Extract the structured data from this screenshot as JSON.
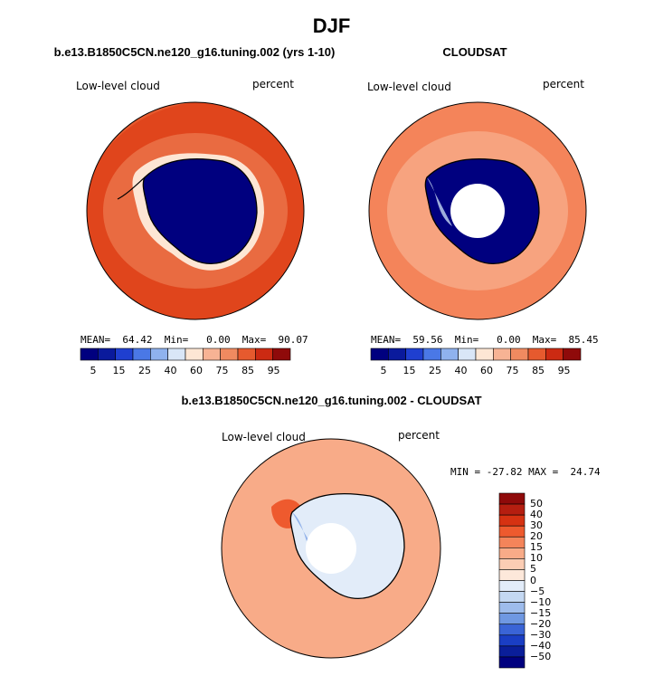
{
  "title": "DJF",
  "panels": {
    "model": {
      "title": "b.e13.B1850C5CN.ne120_g16.tuning.002 (yrs 1-10)",
      "field": "Low-level cloud",
      "units": "percent",
      "stats": "MEAN=  64.42  Min=   0.00  Max=  90.07"
    },
    "obs": {
      "title": "CLOUDSAT",
      "field": "Low-level cloud",
      "units": "percent",
      "stats": "MEAN=  59.56  Min=   0.00  Max=  85.45"
    },
    "diff": {
      "title": "b.e13.B1850C5CN.ne120_g16.tuning.002 - CLOUDSAT",
      "field": "Low-level cloud",
      "units": "percent",
      "stats": "MIN = -27.82 MAX =  24.74"
    }
  },
  "colorbar_abs": {
    "colors": [
      "#00007f",
      "#0a1a9c",
      "#1f3fd0",
      "#4a78e6",
      "#8fb2ee",
      "#d9e6f7",
      "#fde6d4",
      "#f7b394",
      "#f08a60",
      "#e65a2e",
      "#cc2a12",
      "#8f0a0a"
    ],
    "labels": [
      "5",
      "15",
      "25",
      "40",
      "60",
      "75",
      "85",
      "95"
    ]
  },
  "colorbar_diff": {
    "colors": [
      "#8f0a0a",
      "#b51e10",
      "#d63212",
      "#ee5a2e",
      "#f4845a",
      "#f8ab88",
      "#fbcdb4",
      "#fde8da",
      "#e2ecf9",
      "#c4d8f2",
      "#9ebcec",
      "#6f98e2",
      "#3a64d6",
      "#1a3ec4",
      "#0a1e9a",
      "#00007f"
    ],
    "labels": [
      "50",
      "40",
      "30",
      "20",
      "15",
      "10",
      "5",
      "0",
      "−5",
      "−10",
      "−15",
      "−20",
      "−30",
      "−40",
      "−50"
    ]
  },
  "map_colors": {
    "land_low": "#00007f",
    "ocean_high": "#e0451c",
    "ocean_mid": "#f4845a",
    "diff_pos": "#f8ab88",
    "diff_neg": "#6f98e2"
  }
}
